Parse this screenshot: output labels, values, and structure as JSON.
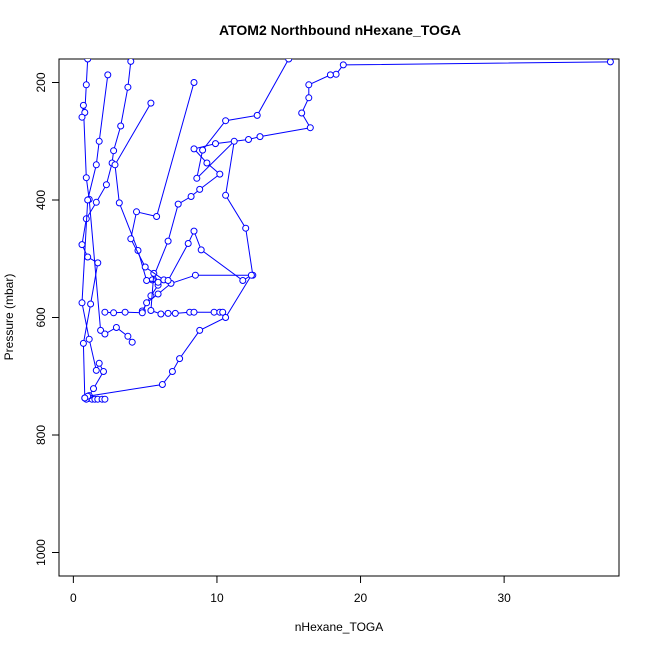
{
  "chart_data": {
    "type": "line",
    "title": "ATOM2 Northbound nHexane_TOGA",
    "xlabel": "nHexane_TOGA",
    "ylabel": "Pressure (mbar)",
    "xlim": [
      -1,
      38
    ],
    "ylim": [
      1040,
      160
    ],
    "y_reversed": true,
    "x_ticks": [
      0,
      10,
      20,
      30
    ],
    "y_ticks": [
      200,
      400,
      600,
      800,
      1000
    ],
    "color": "#0000ff",
    "grid": false,
    "legend": "none",
    "series": [
      {
        "values": [
          [
            37.4,
            165
          ],
          [
            18.8,
            170
          ],
          [
            18.3,
            186
          ],
          [
            17.9,
            187
          ],
          [
            16.4,
            204
          ],
          [
            16.4,
            226
          ],
          [
            15.9,
            252
          ],
          [
            16.5,
            277
          ],
          [
            13.0,
            292
          ],
          [
            12.2,
            297
          ],
          [
            9.9,
            304
          ],
          [
            8.4,
            313
          ],
          [
            9.3,
            337
          ],
          [
            10.2,
            356
          ],
          [
            8.8,
            382
          ],
          [
            8.2,
            394
          ],
          [
            7.3,
            407
          ],
          [
            6.6,
            470
          ],
          [
            5.5,
            536
          ],
          [
            5.9,
            545
          ],
          [
            5.4,
            563
          ],
          [
            4.8,
            589
          ]
        ]
      },
      {
        "values": [
          [
            15.0,
            160
          ],
          [
            12.8,
            256
          ],
          [
            10.6,
            265
          ],
          [
            9.0,
            315
          ],
          [
            8.6,
            363
          ],
          [
            11.2,
            300
          ],
          [
            10.6,
            392
          ],
          [
            12.0,
            448
          ],
          [
            12.5,
            528
          ],
          [
            8.5,
            528
          ],
          [
            6.8,
            542
          ],
          [
            5.9,
            560
          ],
          [
            5.1,
            575
          ],
          [
            4.8,
            592
          ],
          [
            3.6,
            591
          ],
          [
            2.8,
            592
          ],
          [
            2.2,
            591
          ]
        ]
      },
      {
        "values": [
          [
            4.0,
            164
          ],
          [
            3.8,
            208
          ],
          [
            3.3,
            274
          ],
          [
            2.8,
            316
          ],
          [
            2.7,
            337
          ],
          [
            2.3,
            374
          ],
          [
            1.6,
            404
          ],
          [
            0.9,
            432
          ],
          [
            0.6,
            476
          ],
          [
            1.0,
            497
          ],
          [
            1.7,
            507
          ],
          [
            1.2,
            577
          ],
          [
            0.7,
            644
          ],
          [
            0.8,
            737
          ],
          [
            1.0,
            738
          ],
          [
            1.3,
            739
          ],
          [
            1.5,
            739
          ],
          [
            1.7,
            739
          ],
          [
            2.0,
            739
          ],
          [
            2.2,
            739
          ]
        ]
      },
      {
        "values": [
          [
            1.0,
            160
          ],
          [
            0.9,
            204
          ],
          [
            0.8,
            251
          ],
          [
            0.6,
            259
          ],
          [
            0.7,
            239
          ],
          [
            0.9,
            362
          ],
          [
            1.1,
            399
          ],
          [
            1.9,
            622
          ],
          [
            2.2,
            628
          ],
          [
            3.0,
            617
          ],
          [
            3.8,
            632
          ],
          [
            4.1,
            642
          ]
        ]
      },
      {
        "values": [
          [
            2.4,
            187
          ],
          [
            1.8,
            300
          ],
          [
            1.6,
            340
          ],
          [
            1.0,
            400
          ],
          [
            0.6,
            575
          ],
          [
            1.1,
            637
          ],
          [
            1.6,
            690
          ],
          [
            1.8,
            678
          ],
          [
            2.1,
            692
          ],
          [
            1.4,
            721
          ],
          [
            1.1,
            733
          ],
          [
            0.9,
            739
          ]
        ]
      },
      {
        "values": [
          [
            5.4,
            235
          ],
          [
            2.9,
            340
          ],
          [
            3.2,
            405
          ],
          [
            4.5,
            486
          ],
          [
            5.1,
            537
          ],
          [
            5.9,
            540
          ],
          [
            5.6,
            525
          ],
          [
            5.4,
            588
          ],
          [
            6.1,
            594
          ],
          [
            6.6,
            593
          ],
          [
            7.1,
            593
          ],
          [
            8.1,
            591
          ],
          [
            8.4,
            591
          ],
          [
            9.8,
            591
          ],
          [
            10.2,
            591
          ],
          [
            10.4,
            591
          ]
        ]
      },
      {
        "values": [
          [
            8.4,
            200
          ],
          [
            5.8,
            428
          ],
          [
            4.4,
            420
          ],
          [
            4.0,
            466
          ],
          [
            5.0,
            514
          ],
          [
            6.3,
            536
          ],
          [
            6.6,
            537
          ],
          [
            8.0,
            474
          ],
          [
            8.4,
            453
          ],
          [
            8.9,
            485
          ],
          [
            11.8,
            537
          ],
          [
            12.4,
            528
          ],
          [
            10.6,
            600
          ],
          [
            8.8,
            622
          ],
          [
            7.4,
            670
          ],
          [
            6.9,
            692
          ],
          [
            6.2,
            714
          ],
          [
            1.0,
            734
          ],
          [
            0.8,
            737
          ]
        ]
      }
    ]
  }
}
